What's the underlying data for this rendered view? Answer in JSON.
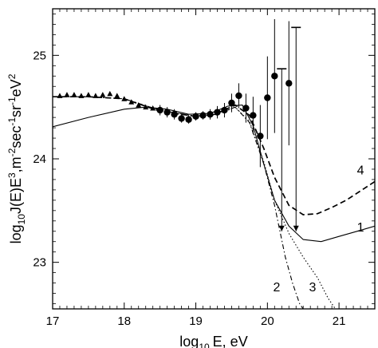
{
  "chart_data": {
    "type": "scatter",
    "title": "",
    "xlabel_main": "log",
    "xlabel_sub": "10",
    "xlabel_tail": "E, eV",
    "ylabel_parts": {
      "a": "log",
      "a_sub": "10",
      "b": "J(E)E",
      "b_sup": "3",
      "c": ",m",
      "c_sup": "-2",
      "d": "sec",
      "d_sup": "-1",
      "e": "sr",
      "e_sup": "-1",
      "f": "eV",
      "f_sup": "2"
    },
    "xlim": [
      17,
      21.5
    ],
    "ylim": [
      22.55,
      25.45
    ],
    "xticks": [
      17,
      18,
      19,
      20,
      21
    ],
    "xtick_labels": [
      "17",
      "18",
      "19",
      "20",
      "21"
    ],
    "yticks": [
      23,
      24,
      25
    ],
    "ytick_labels": [
      "23",
      "24",
      "25"
    ],
    "triangles": [
      {
        "x": 17.1,
        "y": 24.61
      },
      {
        "x": 17.2,
        "y": 24.62
      },
      {
        "x": 17.3,
        "y": 24.62
      },
      {
        "x": 17.4,
        "y": 24.61
      },
      {
        "x": 17.5,
        "y": 24.62
      },
      {
        "x": 17.6,
        "y": 24.61
      },
      {
        "x": 17.7,
        "y": 24.62
      },
      {
        "x": 17.8,
        "y": 24.63
      },
      {
        "x": 17.9,
        "y": 24.61
      },
      {
        "x": 18.0,
        "y": 24.58
      },
      {
        "x": 18.1,
        "y": 24.55
      },
      {
        "x": 18.2,
        "y": 24.52
      },
      {
        "x": 18.3,
        "y": 24.5
      },
      {
        "x": 18.4,
        "y": 24.49
      }
    ],
    "circles": [
      {
        "x": 18.5,
        "y": 24.47,
        "err": 0.05
      },
      {
        "x": 18.6,
        "y": 24.45,
        "err": 0.05
      },
      {
        "x": 18.7,
        "y": 24.43,
        "err": 0.05
      },
      {
        "x": 18.8,
        "y": 24.39,
        "err": 0.04
      },
      {
        "x": 18.9,
        "y": 24.38,
        "err": 0.04
      },
      {
        "x": 19.0,
        "y": 24.41,
        "err": 0.04
      },
      {
        "x": 19.1,
        "y": 24.42,
        "err": 0.04
      },
      {
        "x": 19.2,
        "y": 24.43,
        "err": 0.05
      },
      {
        "x": 19.3,
        "y": 24.45,
        "err": 0.06
      },
      {
        "x": 19.4,
        "y": 24.47,
        "err": 0.07
      },
      {
        "x": 19.5,
        "y": 24.54,
        "err": 0.09
      },
      {
        "x": 19.6,
        "y": 24.61,
        "err": 0.12
      },
      {
        "x": 19.7,
        "y": 24.49,
        "err": 0.14
      },
      {
        "x": 19.8,
        "y": 24.42,
        "err": 0.18
      },
      {
        "x": 19.9,
        "y": 24.22,
        "err": 0.3
      },
      {
        "x": 20.0,
        "y": 24.59,
        "err": 0.4
      },
      {
        "x": 20.1,
        "y": 24.8,
        "err": 0.55
      },
      {
        "x": 20.3,
        "y": 24.73,
        "err": 0.6
      }
    ],
    "upper_limits": [
      {
        "x": 20.2,
        "y_top": 24.87,
        "y_bottom": 23.3
      },
      {
        "x": 20.4,
        "y_top": 25.27,
        "y_bottom": 23.3
      }
    ],
    "series": [
      {
        "label": "1",
        "dash": "solid",
        "x": [
          17.0,
          17.5,
          18.0,
          18.3,
          18.6,
          18.9,
          19.2,
          19.45,
          19.65,
          19.8,
          19.95,
          20.1,
          20.3,
          20.5,
          20.75,
          21.0,
          21.25,
          21.5
        ],
        "y": [
          24.31,
          24.4,
          24.48,
          24.5,
          24.48,
          24.43,
          24.44,
          24.51,
          24.52,
          24.32,
          23.95,
          23.6,
          23.35,
          23.22,
          23.2,
          23.25,
          23.3,
          23.35
        ]
      },
      {
        "label": "2",
        "dash": "dashdot",
        "x": [
          17.0,
          17.5,
          18.0,
          18.5,
          19.0,
          19.3,
          19.55,
          19.75,
          19.95,
          20.1,
          20.25,
          20.35,
          20.45,
          20.5
        ],
        "y": [
          24.6,
          24.6,
          24.58,
          24.47,
          24.41,
          24.43,
          24.5,
          24.35,
          23.95,
          23.55,
          23.05,
          22.8,
          22.6,
          22.55
        ]
      },
      {
        "label": "3",
        "dash": "dotted",
        "x": [
          17.0,
          17.5,
          18.0,
          18.5,
          19.0,
          19.3,
          19.55,
          19.75,
          19.95,
          20.1,
          20.3,
          20.5,
          20.7,
          20.85,
          20.95
        ],
        "y": [
          24.6,
          24.6,
          24.58,
          24.47,
          24.41,
          24.43,
          24.5,
          24.36,
          23.97,
          23.6,
          23.28,
          23.05,
          22.85,
          22.65,
          22.55
        ]
      },
      {
        "label": "4",
        "dash": "dashed",
        "x": [
          17.0,
          17.5,
          18.0,
          18.5,
          19.0,
          19.3,
          19.55,
          19.75,
          19.95,
          20.1,
          20.3,
          20.5,
          20.7,
          20.9,
          21.1,
          21.3,
          21.5
        ],
        "y": [
          24.6,
          24.6,
          24.58,
          24.46,
          24.41,
          24.44,
          24.52,
          24.42,
          24.1,
          23.82,
          23.55,
          23.46,
          23.47,
          23.53,
          23.6,
          23.69,
          23.78
        ]
      }
    ],
    "curve_labels": [
      {
        "text": "4",
        "x": 21.3,
        "y": 23.85
      },
      {
        "text": "1",
        "x": 21.3,
        "y": 23.3
      },
      {
        "text": "2",
        "x": 20.13,
        "y": 22.72
      },
      {
        "text": "3",
        "x": 20.63,
        "y": 22.72
      }
    ]
  }
}
